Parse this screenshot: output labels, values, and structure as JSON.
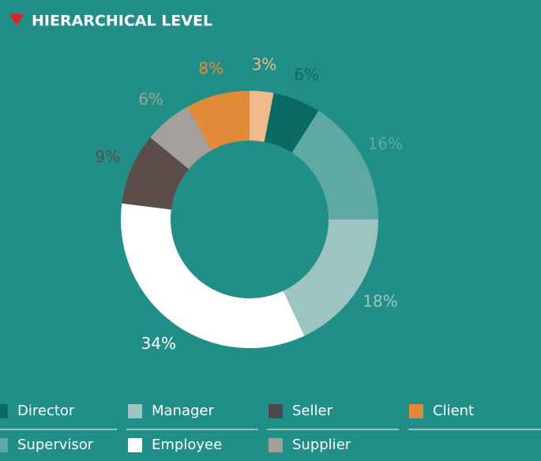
{
  "chart_data": {
    "type": "donut",
    "title": "HIERARCHICAL LEVEL",
    "categories": [
      null,
      "Director",
      "Supervisor",
      "Manager",
      "Employee",
      "Seller",
      "Supplier",
      "Client"
    ],
    "values": [
      3,
      6,
      16,
      18,
      34,
      9,
      6,
      8
    ],
    "value_labels": [
      "3%",
      "6%",
      "16%",
      "18%",
      "34%",
      "9%",
      "6%",
      "8%"
    ],
    "colors": [
      "#f0b98a",
      "#0b6b63",
      "#5ea9a1",
      "#9ec4c1",
      "#ffffff",
      "#5b4b49",
      "#a59f9c",
      "#e38a3a"
    ]
  }
}
